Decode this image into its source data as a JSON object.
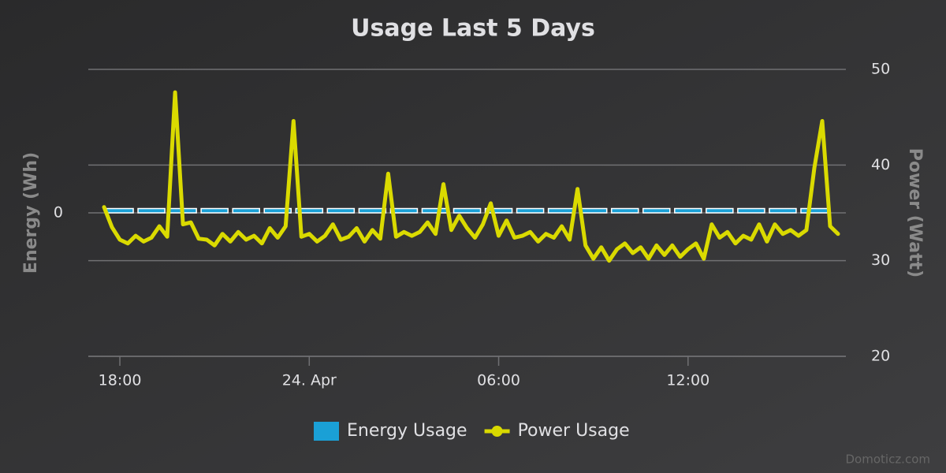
{
  "chart_data": {
    "type": "combo",
    "title": "Usage Last 5 Days",
    "credit": "Domoticz.com",
    "legend": "bottom",
    "grid": true,
    "xlim": [
      -1,
      23
    ],
    "xticks": [
      {
        "value": 0,
        "label": "18:00"
      },
      {
        "value": 6,
        "label": "24. Apr"
      },
      {
        "value": 12,
        "label": "06:00"
      },
      {
        "value": 18,
        "label": "12:00"
      }
    ],
    "ylabel": "Energy (Wh)",
    "ylim": [
      -1,
      1
    ],
    "yticks": [
      0
    ],
    "y2label": "Power (Watt)",
    "y2lim": [
      20,
      50
    ],
    "y2ticks": [
      20,
      30,
      40,
      50
    ],
    "series": [
      {
        "name": "Energy Usage",
        "type": "bar",
        "color": "#1aa0d6",
        "x": [
          0,
          1,
          2,
          3,
          4,
          5,
          6,
          7,
          8,
          9,
          10,
          11,
          12,
          13,
          14,
          15,
          16,
          17,
          18,
          19,
          20,
          21,
          22
        ],
        "values": [
          0.03,
          0.03,
          0.03,
          0.03,
          0.03,
          0.03,
          0.03,
          0.03,
          0.03,
          0.03,
          0.03,
          0.03,
          0.03,
          0.03,
          0.03,
          0.03,
          0.03,
          0.03,
          0.03,
          0.03,
          0.03,
          0.03,
          0.03
        ]
      },
      {
        "name": "Power Usage",
        "type": "line",
        "axis": "y2",
        "color": "#dada00",
        "x": [
          -0.5,
          -0.25,
          0,
          0.25,
          0.5,
          0.75,
          1,
          1.25,
          1.5,
          1.75,
          2,
          2.25,
          2.5,
          2.75,
          3,
          3.25,
          3.5,
          3.75,
          4,
          4.25,
          4.5,
          4.75,
          5,
          5.25,
          5.5,
          5.75,
          6,
          6.25,
          6.5,
          6.75,
          7,
          7.25,
          7.5,
          7.75,
          8,
          8.25,
          8.5,
          8.75,
          9,
          9.25,
          9.5,
          9.75,
          10,
          10.25,
          10.5,
          10.75,
          11,
          11.25,
          11.5,
          11.75,
          12,
          12.25,
          12.5,
          12.75,
          13,
          13.25,
          13.5,
          13.75,
          14,
          14.25,
          14.5,
          14.75,
          15,
          15.25,
          15.5,
          15.75,
          16,
          16.25,
          16.5,
          16.75,
          17,
          17.25,
          17.5,
          17.75,
          18,
          18.25,
          18.5,
          18.75,
          19,
          19.25,
          19.5,
          19.75,
          20,
          20.25,
          20.5,
          20.75,
          21,
          21.25,
          21.5,
          21.75,
          22,
          22.25,
          22.5,
          22.75
        ],
        "values": [
          35.6,
          33.5,
          32.2,
          31.8,
          32.6,
          32.0,
          32.4,
          33.6,
          32.5,
          47.6,
          33.8,
          34.0,
          32.3,
          32.2,
          31.6,
          32.8,
          32.0,
          33.0,
          32.2,
          32.6,
          31.8,
          33.4,
          32.4,
          33.6,
          44.6,
          32.5,
          32.8,
          32.0,
          32.6,
          33.8,
          32.2,
          32.5,
          33.4,
          32.0,
          33.2,
          32.3,
          39.1,
          32.5,
          33.0,
          32.6,
          33.0,
          34.0,
          32.8,
          38.0,
          33.2,
          34.7,
          33.4,
          32.4,
          33.8,
          36.0,
          32.6,
          34.2,
          32.4,
          32.6,
          33.0,
          32.0,
          32.8,
          32.4,
          33.6,
          32.2,
          37.5,
          31.6,
          30.2,
          31.4,
          30.0,
          31.2,
          31.8,
          30.8,
          31.4,
          30.2,
          31.6,
          30.6,
          31.6,
          30.4,
          31.2,
          31.8,
          30.2,
          33.8,
          32.4,
          33.0,
          31.8,
          32.6,
          32.2,
          33.8,
          32.0,
          33.8,
          32.8,
          33.2,
          32.6,
          33.2,
          39.7,
          44.6,
          33.6,
          32.8
        ]
      }
    ]
  }
}
